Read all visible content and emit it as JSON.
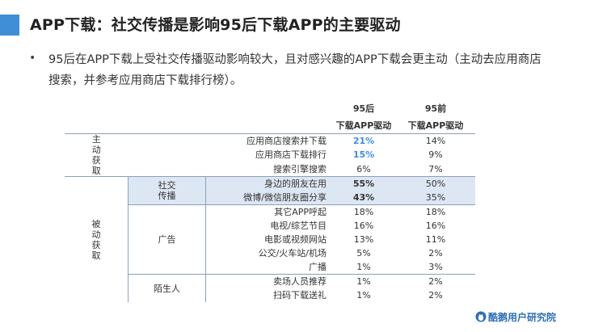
{
  "title": "APP下载：社交传播是影响95后下载APP的主要驱动",
  "bullet": "95后在APP下载上受社交传播驱动影响较大，且对感兴趣的APP下载会更主动（主动去应用商店搜索，并参考应用商店下载排行榜）。",
  "table": {
    "col_95hou": "95后",
    "col_95qian": "95前",
    "sub_label": "下载APP驱动",
    "group_active": [
      "主",
      "动",
      "获",
      "取"
    ],
    "group_passive": [
      "被",
      "动",
      "获",
      "取"
    ],
    "sub_social": [
      "社交",
      "传播"
    ],
    "sub_ads": "广告",
    "sub_stranger": "陌生人",
    "rows": [
      {
        "label": "应用商店搜索并下载",
        "a": "21%",
        "b": "14%"
      },
      {
        "label": "应用商店下载排行",
        "a": "15%",
        "b": "9%"
      },
      {
        "label": "搜索引擎搜索",
        "a": "6%",
        "b": "7%"
      },
      {
        "label": "身边的朋友在用",
        "a": "55%",
        "b": "50%"
      },
      {
        "label": "微博/微信朋友圈分享",
        "a": "43%",
        "b": "35%"
      },
      {
        "label": "其它APP呼起",
        "a": "18%",
        "b": "18%"
      },
      {
        "label": "电视/综艺节目",
        "a": "16%",
        "b": "16%"
      },
      {
        "label": "电影或视频网站",
        "a": "13%",
        "b": "11%"
      },
      {
        "label": "公交/火车站/机场",
        "a": "5%",
        "b": "2%"
      },
      {
        "label": "广播",
        "a": "1%",
        "b": "3%"
      },
      {
        "label": "卖场人员推荐",
        "a": "1%",
        "b": "2%"
      },
      {
        "label": "扫码下载送礼",
        "a": "1%",
        "b": "2%"
      }
    ]
  },
  "brand": "酷鹅用户研究院",
  "colors": {
    "accent": "#3f8ed6",
    "highlight": "#dde7f3"
  }
}
